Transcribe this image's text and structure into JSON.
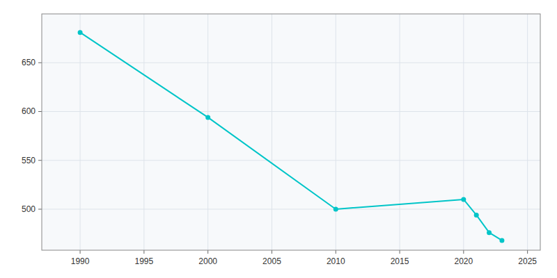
{
  "chart_data": {
    "type": "line",
    "x": [
      1990,
      2000,
      2010,
      2020,
      2021,
      2022,
      2023
    ],
    "values": [
      681,
      594,
      500,
      510,
      494,
      476,
      468
    ],
    "color": "#00C5C8",
    "marker": "circle",
    "xlim": [
      1987,
      2026
    ],
    "ylim": [
      458,
      700
    ],
    "xticks": [
      1990,
      1995,
      2000,
      2005,
      2010,
      2015,
      2020,
      2025
    ],
    "yticks": [
      500,
      550,
      600,
      650
    ],
    "grid": true
  }
}
